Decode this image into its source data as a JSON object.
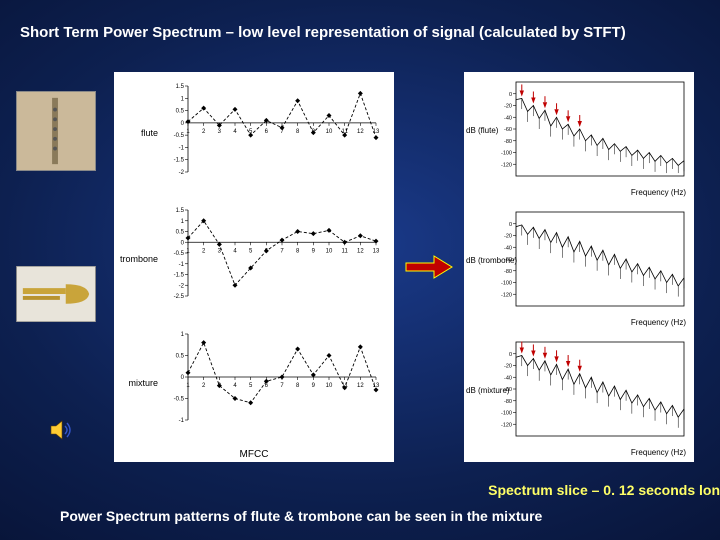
{
  "title": "Short Term Power Spectrum – low level representation of signal (calculated by STFT)",
  "caption1": "Spectrum slice – 0. 12 seconds lon",
  "caption2": "Power Spectrum patterns of flute & trombone can be seen in the mixture",
  "colors": {
    "bg_center": "#1a3a8a",
    "bg_mid": "#0d2050",
    "bg_edge": "#050d2a",
    "title_color": "#ffffff",
    "caption1_color": "#ffff66",
    "caption2_color": "#ffffff",
    "plot_bg": "#ffffff",
    "axis_color": "#000000",
    "line_color": "#000000",
    "marker_color": "#000000",
    "arrow_fill": "#c00000",
    "arrow_border": "#ffff00"
  },
  "instruments": {
    "flute_label": "flute",
    "trombone_label": "trombone"
  },
  "center_plots": {
    "bottom_label": "MFCC",
    "row_labels": [
      "flute",
      "trombone",
      "mixture"
    ],
    "x_ticks": [
      1,
      2,
      3,
      4,
      5,
      6,
      7,
      8,
      9,
      10,
      11,
      12,
      13
    ],
    "panels": [
      {
        "ylabel": "flute",
        "ylim": [
          -2,
          1.5
        ],
        "yticks": [
          -2,
          -1.5,
          -1,
          -0.5,
          0,
          0.5,
          1,
          1.5
        ],
        "values": [
          0.05,
          0.6,
          -0.1,
          0.55,
          -0.5,
          0.1,
          -0.2,
          0.9,
          -0.4,
          0.3,
          -0.5,
          1.2,
          -0.6
        ],
        "line_color": "#000000",
        "marker": "diamond"
      },
      {
        "ylabel": "trombone",
        "ylim": [
          -2.5,
          1.5
        ],
        "yticks": [
          -2.5,
          -2,
          -1.5,
          -1,
          -0.5,
          0,
          0.5,
          1,
          1.5
        ],
        "values": [
          0.2,
          1.0,
          -0.1,
          -2.0,
          -1.2,
          -0.4,
          0.1,
          0.5,
          0.4,
          0.55,
          0.0,
          0.3,
          0.05
        ],
        "line_color": "#000000",
        "marker": "diamond"
      },
      {
        "ylabel": "mixture",
        "ylim": [
          -1,
          1
        ],
        "yticks": [
          -1,
          -0.5,
          0,
          0.5,
          1
        ],
        "values": [
          0.1,
          0.8,
          -0.2,
          -0.5,
          -0.6,
          -0.1,
          0.0,
          0.65,
          0.05,
          0.5,
          -0.25,
          0.7,
          -0.3
        ],
        "line_color": "#000000",
        "marker": "diamond"
      }
    ]
  },
  "right_plots": {
    "xlabel": "Frequency (Hz)",
    "panels": [
      {
        "ylabel": "dB (flute)",
        "ylim": [
          -140,
          20
        ],
        "yticks": [
          -120,
          -100,
          -80,
          -60,
          -40,
          -20,
          0
        ],
        "xlim": [
          0,
          4000
        ],
        "envelope": [
          -10,
          -8,
          -30,
          -20,
          -42,
          -28,
          -55,
          -40,
          -60,
          -52,
          -72,
          -60,
          -80,
          -70,
          -88,
          -76,
          -95,
          -85,
          -98,
          -90,
          -105,
          -96,
          -110,
          -100,
          -115,
          -105,
          -118,
          -110,
          -122,
          -114
        ],
        "arrows": true,
        "line_color": "#000000",
        "arrow_color": "#c00000"
      },
      {
        "ylabel": "dB (trombone)",
        "ylim": [
          -140,
          20
        ],
        "yticks": [
          -120,
          -100,
          -80,
          -60,
          -40,
          -20,
          0
        ],
        "xlim": [
          0,
          4000
        ],
        "envelope": [
          -5,
          -2,
          -18,
          -6,
          -25,
          -10,
          -32,
          -15,
          -40,
          -22,
          -48,
          -30,
          -55,
          -38,
          -62,
          -45,
          -70,
          -52,
          -76,
          -60,
          -82,
          -68,
          -88,
          -74,
          -94,
          -80,
          -100,
          -86,
          -106,
          -92
        ],
        "arrows": false,
        "line_color": "#000000"
      },
      {
        "ylabel": "dB (mixture)",
        "xlabel_override": "Frequency (Hz)",
        "ylim": [
          -140,
          20
        ],
        "yticks": [
          -120,
          -100,
          -80,
          -60,
          -40,
          -20,
          0
        ],
        "xlim": [
          0,
          4000
        ],
        "envelope": [
          -6,
          -3,
          -20,
          -8,
          -28,
          -12,
          -36,
          -18,
          -44,
          -26,
          -52,
          -34,
          -58,
          -40,
          -66,
          -48,
          -72,
          -55,
          -78,
          -62,
          -84,
          -70,
          -90,
          -76,
          -96,
          -82,
          -102,
          -88,
          -108,
          -94
        ],
        "arrows": true,
        "line_color": "#000000",
        "arrow_color": "#c00000"
      }
    ]
  }
}
